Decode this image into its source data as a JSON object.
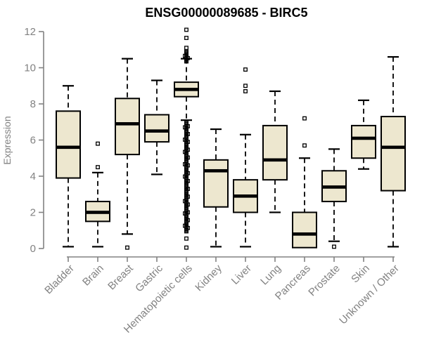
{
  "chart_data": {
    "type": "boxplot",
    "title": "ENSG00000089685 - BIRC5",
    "ylabel": "Expression",
    "xlabel": "",
    "ylim": [
      0,
      12
    ],
    "yticks": [
      0,
      2,
      4,
      6,
      8,
      10,
      12
    ],
    "grid": false,
    "legend": "none",
    "categories": [
      "Bladder",
      "Brain",
      "Breast",
      "Gastric",
      "Hematopoietic cells",
      "Kidney",
      "Liver",
      "Lung",
      "Pancreas",
      "Prostate",
      "Skin",
      "Unknown / Other"
    ],
    "series": [
      {
        "name": "Bladder",
        "low": 0.1,
        "q1": 3.9,
        "median": 5.6,
        "q3": 7.6,
        "high": 9.0,
        "outliers": []
      },
      {
        "name": "Brain",
        "low": 0.1,
        "q1": 1.5,
        "median": 2.0,
        "q3": 2.6,
        "high": 4.2,
        "outliers": [
          4.5,
          5.8
        ]
      },
      {
        "name": "Breast",
        "low": 0.8,
        "q1": 5.2,
        "median": 6.9,
        "q3": 8.3,
        "high": 10.5,
        "outliers": [
          0.05
        ]
      },
      {
        "name": "Gastric",
        "low": 4.1,
        "q1": 5.9,
        "median": 6.5,
        "q3": 7.4,
        "high": 9.3,
        "outliers": []
      },
      {
        "name": "Hematopoietic cells",
        "low": 7.1,
        "q1": 8.4,
        "median": 8.8,
        "q3": 9.2,
        "high": 10.5,
        "outliers": [
          0.05,
          0.55,
          11.1,
          11.65,
          12.1
        ],
        "outlier_ranges": [
          [
            0.95,
            6.95
          ],
          [
            10.35,
            10.9
          ]
        ]
      },
      {
        "name": "Kidney",
        "low": 0.1,
        "q1": 2.3,
        "median": 4.3,
        "q3": 4.9,
        "high": 6.6,
        "outliers": []
      },
      {
        "name": "Liver",
        "low": 0.1,
        "q1": 2.0,
        "median": 2.9,
        "q3": 3.8,
        "high": 6.3,
        "outliers": [
          8.7,
          9.0,
          9.9
        ]
      },
      {
        "name": "Lung",
        "low": 2.0,
        "q1": 3.8,
        "median": 4.9,
        "q3": 6.8,
        "high": 8.7,
        "outliers": []
      },
      {
        "name": "Pancreas",
        "low": 0.05,
        "q1": 0.05,
        "median": 0.8,
        "q3": 2.0,
        "high": 5.0,
        "outliers": [
          5.7,
          7.2
        ]
      },
      {
        "name": "Prostate",
        "low": 0.4,
        "q1": 2.6,
        "median": 3.4,
        "q3": 4.3,
        "high": 5.5,
        "outliers": [
          0.1
        ]
      },
      {
        "name": "Skin",
        "low": 4.4,
        "q1": 5.0,
        "median": 6.1,
        "q3": 6.8,
        "high": 8.2,
        "outliers": []
      },
      {
        "name": "Unknown / Other",
        "low": 0.1,
        "q1": 3.2,
        "median": 5.6,
        "q3": 7.3,
        "high": 10.6,
        "outliers": []
      }
    ]
  },
  "style": {
    "box_fill": "#ede7cf",
    "box_stroke": "#000000",
    "median_color": "#000000",
    "outlier_color": "#000000",
    "axis_color": "#828282",
    "title_color": "#000000",
    "background": "#ffffff"
  }
}
